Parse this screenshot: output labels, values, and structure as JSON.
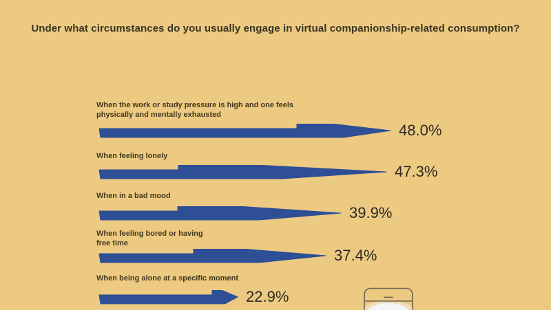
{
  "page_title": "Under what circumstances do you usually engage in virtual companionship-related consumption?",
  "colors": {
    "background": "#ecca82",
    "bar": "#2e4e96",
    "title_text": "#3a3322",
    "label_text": "#46391f",
    "value_text": "#2e2a22",
    "phone_outline": "#6e6350",
    "phone_glow": "#f3f6f9"
  },
  "chart_data": {
    "type": "bar",
    "orientation": "horizontal",
    "title": "Under what circumstances do you usually engage in virtual companionship-related consumption?",
    "unit": "percent",
    "xlim": [
      0,
      50
    ],
    "grid": false,
    "legend": false,
    "categories": [
      "When the work or study pressure is high and one feels\nphysically and mentally exhausted",
      "When feeling lonely",
      "When in a bad mood",
      "When feeling bored or having\nfree time",
      "When being alone at a specific moment"
    ],
    "values": [
      48.0,
      47.3,
      39.9,
      37.4,
      22.9
    ],
    "value_labels": [
      "48.0%",
      "47.3%",
      "39.9%",
      "37.4%",
      "22.9%"
    ]
  },
  "decor": {
    "phone_icon": "smartphone outline with white glow on screen, cut off at bottom edge"
  }
}
